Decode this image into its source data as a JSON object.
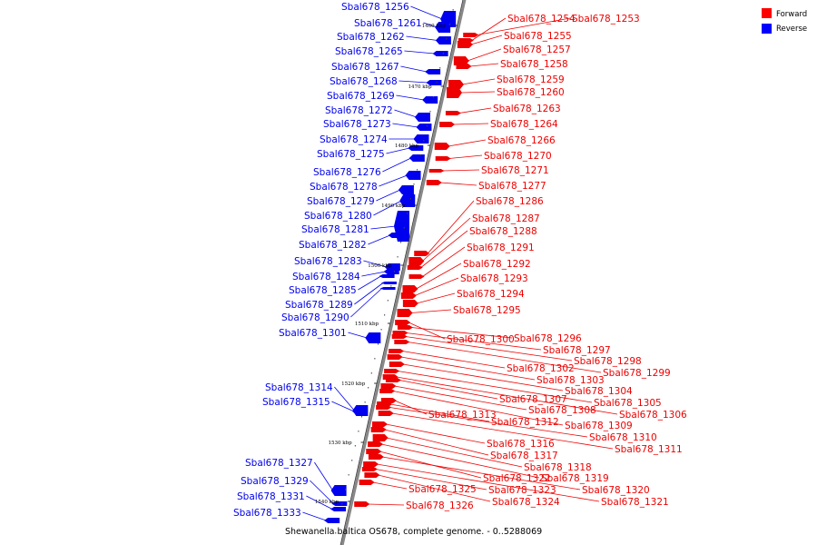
{
  "caption": "Shewanella baltica OS678, complete genome. - 0..5288069",
  "legend": [
    {
      "label": "Forward",
      "color": "#ff0000"
    },
    {
      "label": "Reverse",
      "color": "#0000ff"
    }
  ],
  "ticks": [
    "1460 kbp",
    "1470 kbp",
    "1480 kbp",
    "1490 kbp",
    "1500 kbp",
    "1510 kbp",
    "1520 kbp",
    "1530 kbp",
    "1540 kbp"
  ],
  "forward_genes": [
    "Sbal678_1254",
    "Sbal678_1253",
    "Sbal678_1255",
    "Sbal678_1257",
    "Sbal678_1258",
    "Sbal678_1259",
    "Sbal678_1260",
    "Sbal678_1263",
    "Sbal678_1264",
    "Sbal678_1266",
    "Sbal678_1270",
    "Sbal678_1271",
    "Sbal678_1277",
    "Sbal678_1286",
    "Sbal678_1287",
    "Sbal678_1288",
    "Sbal678_1291",
    "Sbal678_1292",
    "Sbal678_1293",
    "Sbal678_1294",
    "Sbal678_1295",
    "Sbal678_1300",
    "Sbal678_1296",
    "Sbal678_1297",
    "Sbal678_1298",
    "Sbal678_1299",
    "Sbal678_1302",
    "Sbal678_1303",
    "Sbal678_1304",
    "Sbal678_1305",
    "Sbal678_1306",
    "Sbal678_1307",
    "Sbal678_1308",
    "Sbal678_1309",
    "Sbal678_1313",
    "Sbal678_1312",
    "Sbal678_1310",
    "Sbal678_1311",
    "Sbal678_1316",
    "Sbal678_1317",
    "Sbal678_1318",
    "Sbal678_1319",
    "Sbal678_1322",
    "Sbal678_1320",
    "Sbal678_1321",
    "Sbal678_1323",
    "Sbal678_1324",
    "Sbal678_1325",
    "Sbal678_1326"
  ],
  "reverse_genes": [
    "Sbal678_1256",
    "Sbal678_1261",
    "Sbal678_1262",
    "Sbal678_1265",
    "Sbal678_1267",
    "Sbal678_1268",
    "Sbal678_1269",
    "Sbal678_1272",
    "Sbal678_1273",
    "Sbal678_1274",
    "Sbal678_1275",
    "Sbal678_1276",
    "Sbal678_1278",
    "Sbal678_1279",
    "Sbal678_1280",
    "Sbal678_1281",
    "Sbal678_1282",
    "Sbal678_1283",
    "Sbal678_1284",
    "Sbal678_1285",
    "Sbal678_1289",
    "Sbal678_1290",
    "Sbal678_1301",
    "Sbal678_1314",
    "Sbal678_1315",
    "Sbal678_1327",
    "Sbal678_1329",
    "Sbal678_1331",
    "Sbal678_1333"
  ]
}
